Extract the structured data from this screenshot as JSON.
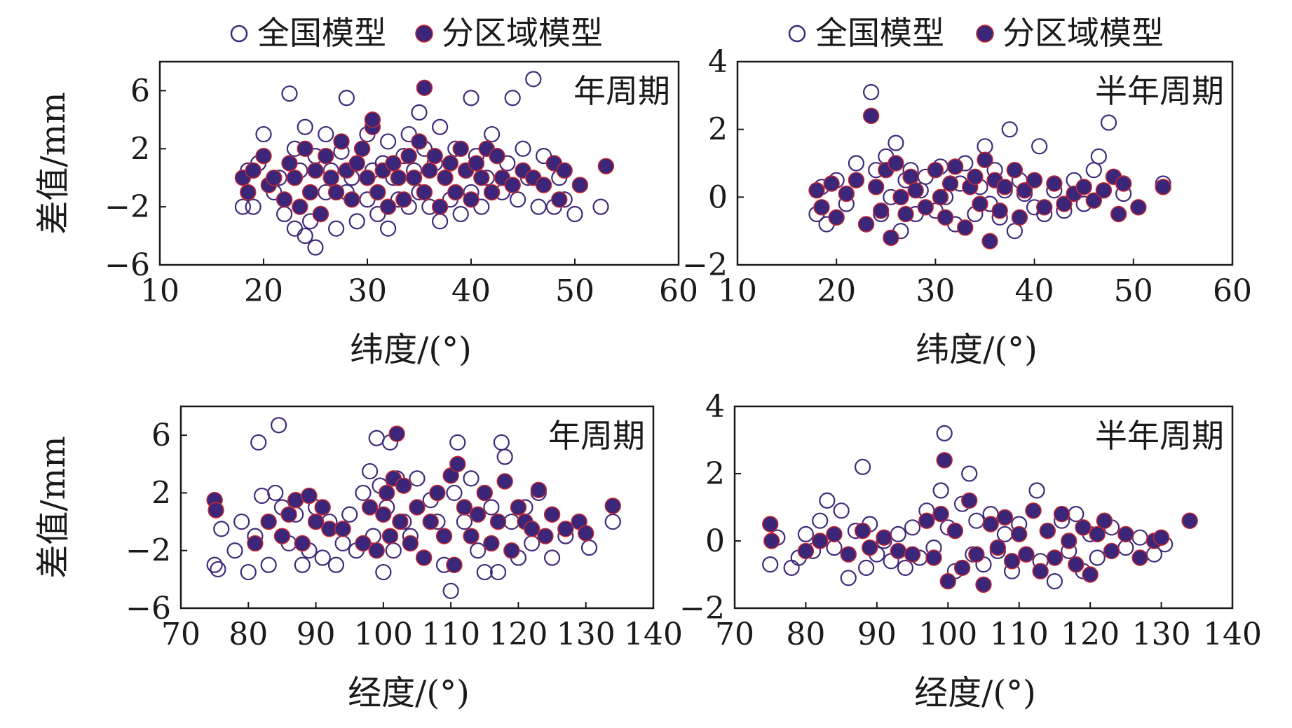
{
  "legend": {
    "open_label": "全国模型",
    "filled_label": "分区域模型"
  },
  "colors": {
    "marker": "#3f2a7a",
    "marker_fill": "#3b2679",
    "marker_edge_accent": "#d22a2a",
    "axis": "#1a1a1a"
  },
  "chart_data": [
    {
      "type": "scatter",
      "title": "",
      "panel_label": "年周期",
      "xlabel": "纬度/(°)",
      "ylabel": "差值/mm",
      "xlim": [
        10,
        60
      ],
      "ylim": [
        -6,
        8
      ],
      "xticks": [
        "10",
        "20",
        "30",
        "40",
        "50",
        "60"
      ],
      "yticks": [
        "6",
        "2",
        "-2",
        "-6"
      ],
      "xtick_values": [
        10,
        20,
        30,
        40,
        50,
        60
      ],
      "ytick_values": [
        6,
        2,
        -2,
        -6
      ],
      "series": [
        {
          "name": "全国模型",
          "marker": "open",
          "x": [
            18,
            18.5,
            19,
            19.5,
            20,
            21,
            21.5,
            22,
            22.5,
            23,
            23,
            23.5,
            24,
            24,
            24.5,
            25,
            25,
            25.5,
            26,
            26,
            26.5,
            27,
            27.5,
            28,
            28,
            28.5,
            29,
            29.5,
            30,
            30,
            30.5,
            31,
            31.5,
            32,
            32,
            32.5,
            33,
            33.5,
            34,
            34,
            34.5,
            35,
            35,
            35.5,
            36,
            36.5,
            37,
            37,
            37.5,
            38,
            38.5,
            39,
            39.5,
            40,
            40,
            40.5,
            41,
            41.5,
            42,
            43,
            43.5,
            44,
            44.5,
            45,
            45.5,
            46,
            46.5,
            47,
            48,
            48.5,
            49,
            50,
            52.5
          ],
          "y": [
            -2,
            0.5,
            -2,
            1,
            3,
            -1,
            0,
            -2.5,
            5.8,
            -3.5,
            2,
            0.5,
            -4,
            3.5,
            -3,
            -4.8,
            1.5,
            -2.5,
            3,
            -1,
            0.5,
            -3.5,
            1.8,
            5.5,
            -1,
            0,
            -3,
            2,
            3,
            -1.5,
            0.5,
            -2.5,
            1,
            -3.5,
            2.5,
            0,
            -1.5,
            1.5,
            -2,
            3,
            0.5,
            4.5,
            -1,
            2,
            -2,
            1,
            3.5,
            -3,
            0,
            -1.5,
            2,
            -2.5,
            0.5,
            5.5,
            -1,
            1.5,
            -2,
            0,
            3,
            -1,
            1,
            5.5,
            -1.5,
            2,
            0,
            6.8,
            -2,
            1.5,
            -2,
            0,
            -1.5,
            -2.5,
            -2
          ]
        },
        {
          "name": "分区域模型",
          "marker": "filled",
          "x": [
            18,
            18.5,
            19,
            20,
            20.5,
            21,
            22,
            22.5,
            23,
            23.5,
            24,
            24.5,
            25,
            25.5,
            26,
            26.5,
            27,
            27.5,
            28,
            28.5,
            29,
            29.5,
            30,
            30.5,
            30.5,
            31,
            31.5,
            32,
            32.5,
            33,
            33.5,
            34,
            34.5,
            35,
            35.5,
            35.5,
            36,
            36.5,
            37,
            37.5,
            38,
            38.5,
            39,
            39.5,
            40,
            40.5,
            41,
            41.5,
            42,
            42.5,
            43,
            44,
            45,
            46,
            47,
            48,
            48.5,
            49,
            50.5,
            53
          ],
          "y": [
            0,
            -1,
            0.5,
            1.5,
            -0.5,
            0,
            -1.5,
            1,
            0,
            -2,
            2,
            -1,
            0.5,
            -2.5,
            1.5,
            0,
            -1,
            2.5,
            0.5,
            -1.5,
            1,
            2,
            0,
            3.5,
            4,
            -1,
            0.5,
            -2,
            1,
            0,
            -1.5,
            1.5,
            0,
            2.5,
            6.2,
            -1,
            0.5,
            1.5,
            -2,
            0,
            1,
            -1,
            2,
            0.5,
            -1.5,
            1,
            0,
            2,
            -1,
            1.5,
            0,
            -0.5,
            0.5,
            0,
            -0.5,
            1,
            -1.5,
            0.5,
            -0.5,
            0.8
          ]
        }
      ]
    },
    {
      "type": "scatter",
      "title": "",
      "panel_label": "半年周期",
      "xlabel": "纬度/(°)",
      "ylabel": "",
      "xlim": [
        10,
        60
      ],
      "ylim": [
        -2,
        4
      ],
      "xticks": [
        "10",
        "20",
        "30",
        "40",
        "50",
        "60"
      ],
      "yticks": [
        "4",
        "2",
        "0",
        "-2"
      ],
      "xtick_values": [
        10,
        20,
        30,
        40,
        50,
        60
      ],
      "ytick_values": [
        4,
        2,
        0,
        -2
      ],
      "series": [
        {
          "name": "全国模型",
          "marker": "open",
          "x": [
            18,
            18.5,
            19,
            20,
            21,
            22,
            23,
            23.5,
            24,
            24.5,
            25,
            25.5,
            26,
            26.5,
            27,
            27.5,
            28,
            28.5,
            29,
            30,
            30.5,
            31,
            32,
            32.5,
            33,
            34,
            34.5,
            35,
            35.5,
            36,
            36.5,
            37,
            37.5,
            38,
            38.5,
            39,
            40,
            40.5,
            41,
            42,
            43,
            44,
            45,
            46,
            46.5,
            47.5,
            48,
            49,
            53
          ],
          "y": [
            -0.5,
            0.3,
            -0.8,
            0.5,
            -0.2,
            1,
            -0.8,
            3.1,
            0.8,
            -0.5,
            1.2,
            0,
            1.6,
            -1,
            0.5,
            0.8,
            -0.5,
            0.2,
            0.6,
            -0.4,
            0.9,
            0,
            -0.8,
            0.4,
            1,
            -0.5,
            0.3,
            1.5,
            -0.2,
            0.8,
            -0.6,
            0.2,
            2,
            -1,
            0.5,
            0.1,
            -0.3,
            1.5,
            -0.5,
            0.2,
            -0.4,
            0.5,
            -0.2,
            0.8,
            1.2,
            2.2,
            0.6,
            0.1,
            0.4
          ]
        },
        {
          "name": "分区域模型",
          "marker": "filled",
          "x": [
            18,
            18.5,
            19.5,
            20,
            21,
            22,
            23,
            23.5,
            24,
            24.5,
            25,
            25.5,
            26,
            26.5,
            27,
            27.5,
            28,
            29,
            30,
            30.5,
            31,
            31.5,
            32,
            33,
            33.5,
            34,
            34.5,
            35,
            35.5,
            36,
            36.5,
            37,
            38,
            38.5,
            39,
            40,
            41,
            42,
            43,
            44,
            45,
            46,
            47,
            48,
            48.5,
            49,
            50.5,
            53
          ],
          "y": [
            0.2,
            -0.3,
            0.4,
            -0.6,
            0.1,
            0.5,
            -0.8,
            2.4,
            0.3,
            -0.4,
            0.8,
            -1.2,
            1,
            0,
            -0.5,
            0.6,
            0.2,
            -0.3,
            0.8,
            0,
            -0.6,
            0.4,
            0.9,
            -0.9,
            0.3,
            0.6,
            -0.2,
            1.1,
            -1.3,
            0.5,
            -0.4,
            0.3,
            0.8,
            -0.6,
            0.2,
            0.5,
            -0.3,
            0.4,
            -0.2,
            0.1,
            0.3,
            -0.1,
            0.2,
            0.6,
            -0.5,
            0.4,
            -0.3,
            0.3
          ]
        }
      ]
    },
    {
      "type": "scatter",
      "title": "",
      "panel_label": "年周期",
      "xlabel": "经度/(°)",
      "ylabel": "差值/mm",
      "xlim": [
        70,
        140
      ],
      "ylim": [
        -6,
        8
      ],
      "xticks": [
        "70",
        "80",
        "90",
        "100",
        "110",
        "120",
        "130",
        "140"
      ],
      "yticks": [
        "6",
        "2",
        "-2",
        "-6"
      ],
      "xtick_values": [
        70,
        80,
        90,
        100,
        110,
        120,
        130,
        140
      ],
      "ytick_values": [
        6,
        2,
        -2,
        -6
      ],
      "series": [
        {
          "name": "全国模型",
          "marker": "open",
          "x": [
            75,
            75.5,
            76,
            78,
            79,
            80,
            81,
            81.5,
            82,
            83,
            84,
            84.5,
            85,
            86,
            87,
            88,
            89,
            90,
            91,
            92,
            93,
            94,
            95,
            96,
            97,
            98,
            98.5,
            99,
            99.5,
            100,
            100.5,
            101,
            101.5,
            102,
            103,
            104,
            105,
            106,
            107,
            108,
            109,
            110,
            110.5,
            111,
            112,
            113,
            114,
            115,
            116,
            117,
            117.5,
            118,
            119,
            120,
            121,
            122,
            123,
            125,
            127,
            129,
            130.5,
            134
          ],
          "y": [
            -3,
            -3.3,
            -0.5,
            -2,
            0,
            -3.5,
            -1,
            5.5,
            1.8,
            -3,
            2,
            6.7,
            1,
            -1.5,
            0.5,
            -3,
            -2,
            1,
            -2.5,
            0,
            -3,
            -1.5,
            0.5,
            -2,
            2,
            3.5,
            -1,
            5.8,
            2.5,
            -3.5,
            1,
            5.5,
            -2,
            3,
            0,
            -1,
            3,
            -2.5,
            1.5,
            0,
            -3,
            -4.8,
            2,
            5.5,
            0,
            3,
            -2,
            -3.5,
            1,
            -3.5,
            5.5,
            4.5,
            0,
            -2.5,
            1,
            -1.5,
            2,
            -2.5,
            -1,
            0,
            -1.8,
            0
          ]
        },
        {
          "name": "分区域模型",
          "marker": "filled",
          "x": [
            75,
            75.2,
            81,
            83,
            85,
            86,
            87,
            88,
            89,
            90,
            91,
            92,
            94,
            97,
            98,
            99,
            100,
            100.5,
            101,
            101.5,
            102,
            102.5,
            103,
            104,
            105,
            106,
            107,
            108,
            109,
            110,
            110.5,
            111,
            112,
            113,
            114,
            115,
            116,
            117,
            118,
            119,
            120,
            121,
            122,
            123,
            124,
            125,
            127,
            129,
            130,
            134
          ],
          "y": [
            1.5,
            0.8,
            -1.5,
            0,
            -1,
            0.5,
            1.5,
            -1.5,
            1.8,
            0,
            1,
            -0.5,
            -0.5,
            -1.5,
            1,
            -2,
            0.5,
            2,
            -1,
            3,
            6.1,
            0,
            2.5,
            -1.5,
            1,
            -2.5,
            0,
            2,
            -1,
            3.2,
            -3,
            4,
            1,
            -1,
            0.5,
            2,
            -1.5,
            0,
            2.8,
            -2,
            1,
            0,
            -0.5,
            2.2,
            -1,
            0.5,
            -0.5,
            0,
            -0.8,
            1.1
          ]
        }
      ]
    },
    {
      "type": "scatter",
      "title": "",
      "panel_label": "半年周期",
      "xlabel": "经度/(°)",
      "ylabel": "",
      "xlim": [
        70,
        140
      ],
      "ylim": [
        -2,
        4
      ],
      "xticks": [
        "70",
        "80",
        "90",
        "100",
        "110",
        "120",
        "130",
        "140"
      ],
      "yticks": [
        "4",
        "2",
        "0",
        "-2"
      ],
      "xtick_values": [
        70,
        80,
        90,
        100,
        110,
        120,
        130,
        140
      ],
      "ytick_values": [
        4,
        2,
        0,
        -2
      ],
      "series": [
        {
          "name": "全国模型",
          "marker": "open",
          "x": [
            75,
            76,
            78,
            79,
            80,
            81,
            82,
            83,
            84,
            85,
            86,
            87,
            88,
            88.5,
            89,
            90,
            91,
            92,
            93,
            94,
            95,
            96,
            97,
            98,
            99,
            99.5,
            100,
            101,
            102,
            103,
            103.5,
            104,
            105,
            106,
            107,
            108,
            109,
            110,
            111,
            112,
            112.5,
            113,
            114,
            115,
            116,
            117,
            118,
            119,
            120,
            121,
            123,
            125,
            127,
            129,
            130.5,
            134
          ],
          "y": [
            -0.7,
            0.1,
            -0.8,
            -0.5,
            0.2,
            -0.3,
            0.6,
            1.2,
            -0.2,
            0.9,
            -1.1,
            0.3,
            2.2,
            -0.8,
            0.5,
            -0.4,
            0,
            -0.6,
            0.2,
            -0.8,
            0.4,
            -0.5,
            0.9,
            -0.2,
            1.5,
            3.2,
            0.4,
            -0.9,
            1.1,
            2,
            -0.4,
            0.6,
            -0.7,
            0.8,
            -0.3,
            0.2,
            -0.9,
            0.5,
            -0.4,
            0.9,
            1.5,
            -0.6,
            0.3,
            -1.2,
            0.6,
            -0.3,
            0.8,
            -0.9,
            0.2,
            -0.5,
            0.4,
            -0.2,
            0.1,
            -0.4,
            -0.1,
            0.6
          ]
        },
        {
          "name": "分区域模型",
          "marker": "filled",
          "x": [
            75,
            75.2,
            80,
            82,
            84,
            86,
            88,
            89,
            91,
            93,
            95,
            97,
            98,
            99,
            99.5,
            100,
            101,
            102,
            103,
            104,
            105,
            106,
            107,
            108,
            109,
            110,
            111,
            112,
            113,
            114,
            115,
            116,
            117,
            118,
            119,
            120,
            121,
            122,
            123,
            125,
            127,
            129,
            130,
            134
          ],
          "y": [
            0.5,
            0,
            -0.3,
            0,
            0.2,
            -0.4,
            0.3,
            -0.2,
            0.1,
            -0.3,
            -0.4,
            0.6,
            -0.5,
            0.8,
            2.4,
            -1.2,
            0.3,
            -0.8,
            1.2,
            -0.4,
            -1.3,
            0.5,
            -0.2,
            0.7,
            -0.6,
            0.2,
            -0.4,
            0.9,
            -0.9,
            0.3,
            -0.5,
            0.8,
            0,
            -0.7,
            0.4,
            -1,
            0.2,
            0.6,
            -0.3,
            0.2,
            -0.5,
            0,
            0.1,
            0.6
          ]
        }
      ]
    }
  ]
}
